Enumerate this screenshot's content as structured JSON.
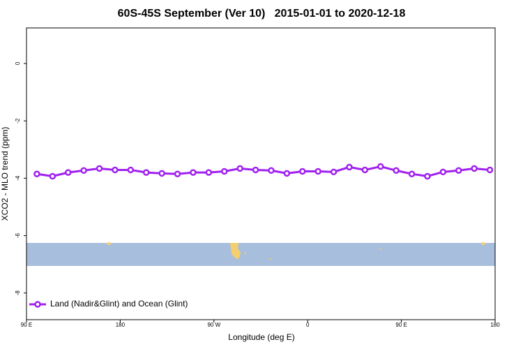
{
  "chart_data": {
    "type": "line",
    "title": "60S-45S September (Ver 10)   2015-01-01 to 2020-12-18",
    "xlabel": "Longitude (deg E)",
    "ylabel": "XCO2 - MLO trend (ppm)",
    "x": [
      100,
      115,
      130,
      145,
      160,
      175,
      190,
      205,
      220,
      235,
      250,
      265,
      280,
      295,
      310,
      325,
      340,
      355,
      370,
      385,
      400,
      415,
      430,
      445,
      460,
      475,
      490,
      505,
      520,
      535
    ],
    "series": [
      {
        "name": "Land (Nadir&Glint) and Ocean (Glint)",
        "color": "#a020f0",
        "values": [
          -3.85,
          -3.93,
          -3.8,
          -3.73,
          -3.66,
          -3.71,
          -3.71,
          -3.8,
          -3.83,
          -3.85,
          -3.8,
          -3.8,
          -3.76,
          -3.66,
          -3.71,
          -3.73,
          -3.83,
          -3.76,
          -3.76,
          -3.78,
          -3.61,
          -3.71,
          -3.59,
          -3.73,
          -3.85,
          -3.93,
          -3.78,
          -3.73,
          -3.66,
          -3.71
        ]
      }
    ],
    "xlim": [
      90,
      540
    ],
    "xticks": [
      {
        "value": 90,
        "label": "90 E"
      },
      180,
      {
        "value": 270,
        "label": "90 W"
      },
      {
        "value": 360,
        "label": "0"
      },
      {
        "value": 450,
        "label": "90 E"
      },
      {
        "value": 540,
        "label": "180"
      }
    ],
    "ylim": [
      -8.93,
      1.24
    ],
    "yticks": [
      0,
      -2,
      -4,
      -6,
      -8
    ],
    "legend": "bottom left"
  }
}
